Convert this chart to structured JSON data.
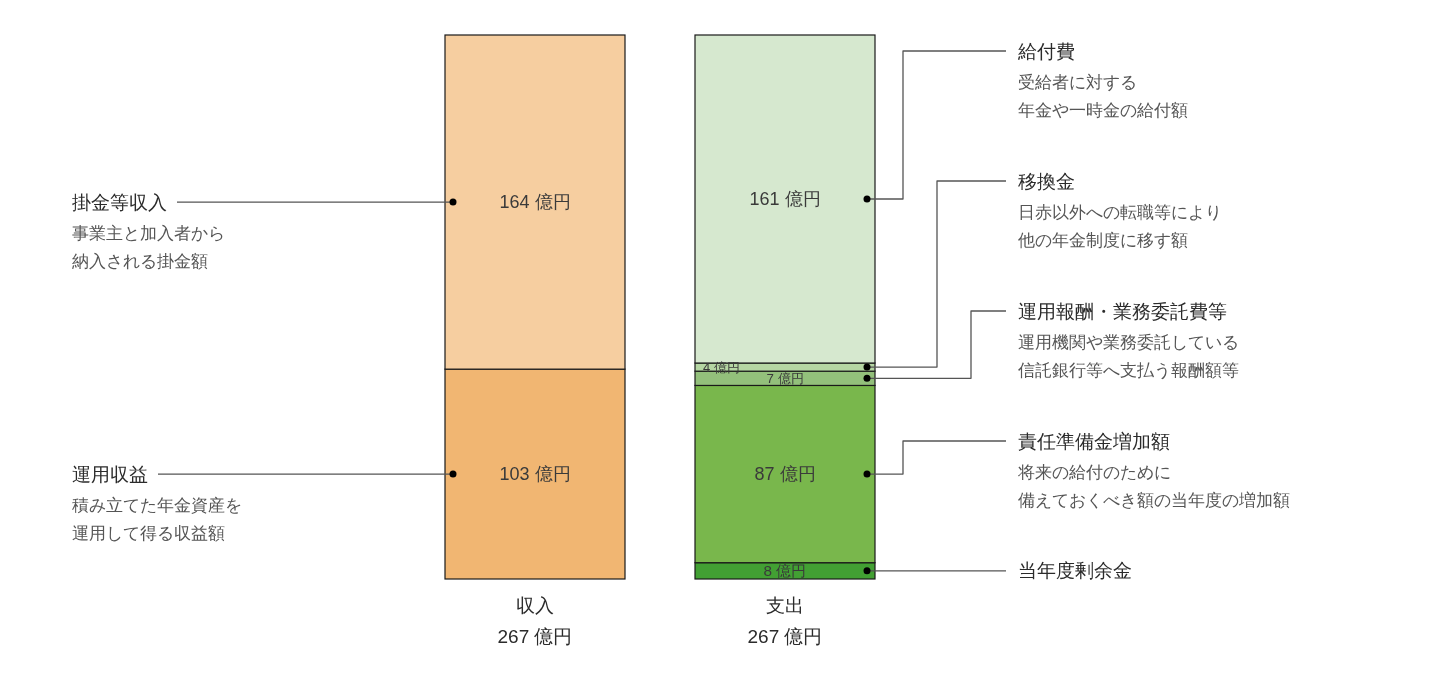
{
  "chart_data": {
    "type": "bar",
    "stacked": true,
    "categories": [
      "収入",
      "支出"
    ],
    "series": [
      {
        "name": "運用収益",
        "color": "#f1b672",
        "values": [
          103,
          null
        ],
        "value_labels": [
          "103 億円",
          null
        ]
      },
      {
        "name": "掛金等収入",
        "color": "#f6cea0",
        "values": [
          164,
          null
        ],
        "value_labels": [
          "164 億円",
          null
        ]
      },
      {
        "name": "当年度剰余金",
        "color": "#42a033",
        "values": [
          null,
          8
        ],
        "value_labels": [
          null,
          "8 億円"
        ]
      },
      {
        "name": "責任準備金増加額",
        "color": "#79b74c",
        "values": [
          null,
          87
        ],
        "value_labels": [
          null,
          "87 億円"
        ]
      },
      {
        "name": "運用報酬・業務委託費等",
        "color": "#93c07b",
        "values": [
          null,
          7
        ],
        "value_labels": [
          null,
          "7 億円"
        ]
      },
      {
        "name": "移換金",
        "color": "#b5d6a3",
        "values": [
          null,
          4
        ],
        "value_labels": [
          null,
          "4 億円"
        ]
      },
      {
        "name": "給付費",
        "color": "#d6e8cf",
        "values": [
          null,
          161
        ],
        "value_labels": [
          null,
          "161 億円"
        ]
      }
    ],
    "totals": [
      "267 億円",
      "267 億円"
    ],
    "annotations": [
      "事業主と加入者から納入される掛金額",
      "積み立てた年金資産を運用して得る収益額",
      "受給者に対する年金や一時金の給付額",
      "日赤以外への転職等により他の年金制度に移す額",
      "運用機関や業務委託している信託銀行等へ支払う報酬額等",
      "将来の給付のために備えておくべき額の当年度の増加額"
    ]
  }
}
